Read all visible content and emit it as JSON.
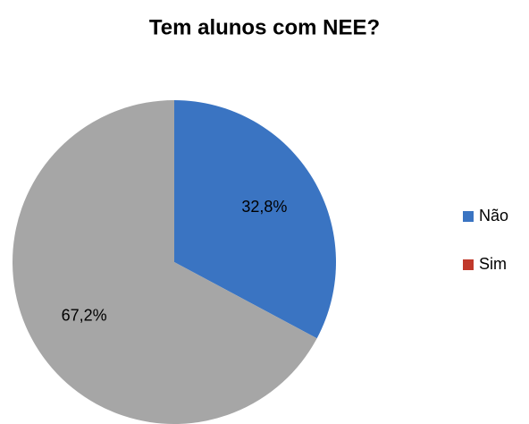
{
  "chart_data": {
    "type": "pie",
    "title": "Tem alunos com NEE?",
    "categories": [
      "Não",
      "Sim"
    ],
    "values": [
      32.8,
      67.2
    ],
    "value_labels": [
      "32,8%",
      "67,2%"
    ],
    "colors": [
      "#3a74c2",
      "#a6a6a6"
    ],
    "legend_colors": [
      "#3a74c2",
      "#c0392b"
    ],
    "legend": "right"
  }
}
